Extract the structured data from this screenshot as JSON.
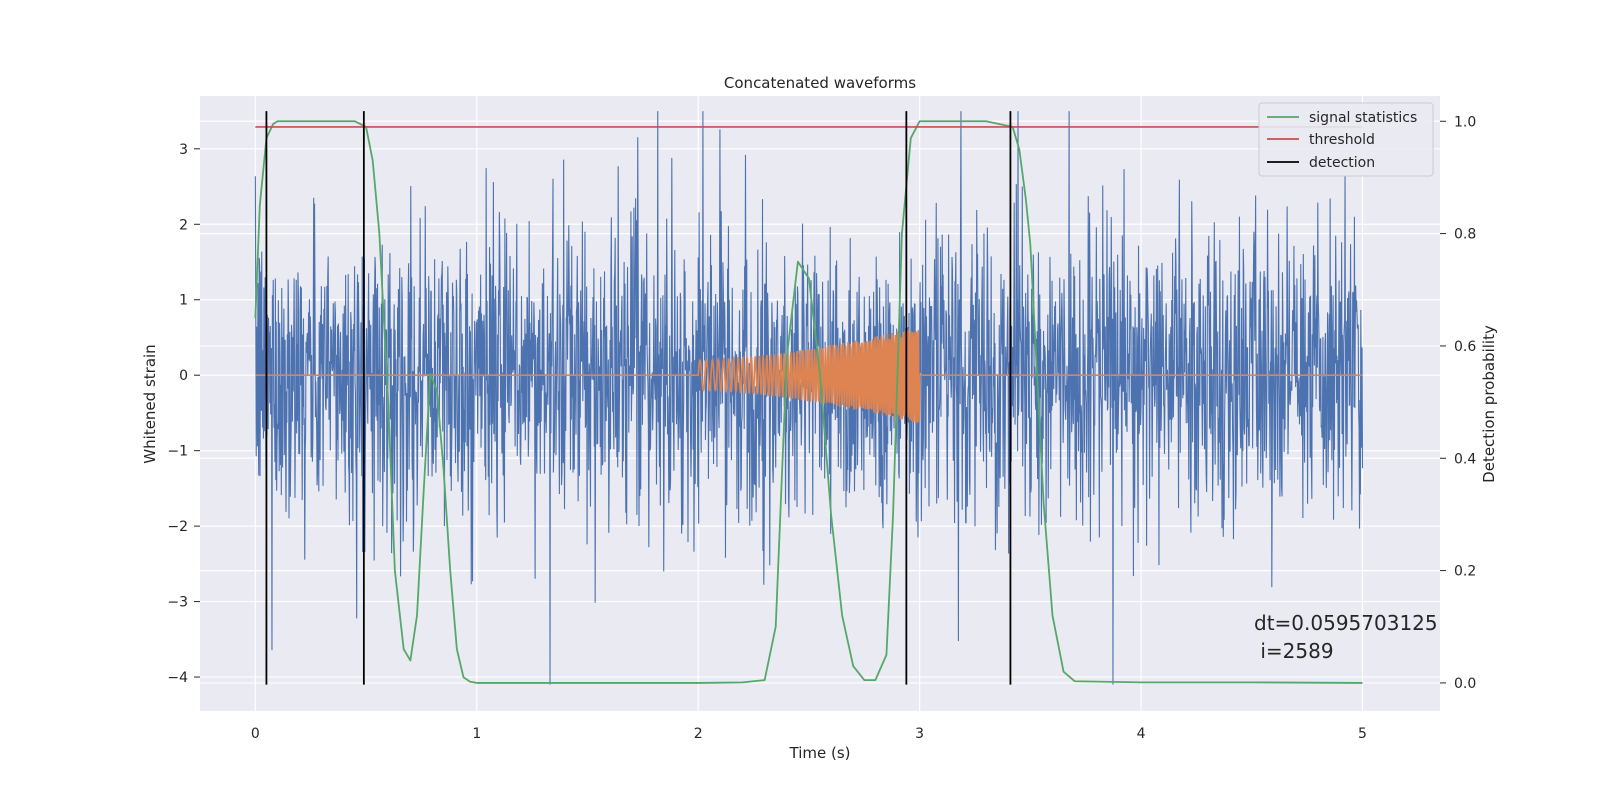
{
  "chart_data": {
    "type": "line",
    "title": "Concatenated waveforms",
    "xlabel": "Time (s)",
    "ylabel": "Whitened strain",
    "ylabel_right": "Detection probability",
    "xlim": [
      -0.25,
      5.35
    ],
    "ylim": [
      -4.45,
      3.7
    ],
    "ylim_right": [
      -0.05,
      1.045
    ],
    "x_ticks": [
      0,
      1,
      2,
      3,
      4,
      5
    ],
    "y_ticks": [
      -4,
      -3,
      -2,
      -1,
      0,
      1,
      2,
      3
    ],
    "y_right_ticks": [
      0.0,
      0.2,
      0.4,
      0.6,
      0.8,
      1.0
    ],
    "x_tick_labels": [
      "0",
      "1",
      "2",
      "3",
      "4",
      "5"
    ],
    "y_tick_labels": [
      "−4",
      "−3",
      "−2",
      "−1",
      "0",
      "1",
      "2",
      "3"
    ],
    "y_right_tick_labels": [
      "0.0",
      "0.2",
      "0.4",
      "0.6",
      "0.8",
      "1.0"
    ],
    "grid": true,
    "legend_position": "top-right",
    "background": "#eaeaf2",
    "series": [
      {
        "name": "signal statistics",
        "axis": "right",
        "color": "#55a868",
        "x": [
          0.0,
          0.02,
          0.05,
          0.08,
          0.1,
          0.15,
          0.3,
          0.45,
          0.5,
          0.53,
          0.56,
          0.6,
          0.63,
          0.67,
          0.7,
          0.73,
          0.76,
          0.79,
          0.82,
          0.85,
          0.88,
          0.91,
          0.94,
          0.97,
          1.0,
          1.5,
          2.0,
          2.2,
          2.3,
          2.35,
          2.4,
          2.45,
          2.5,
          2.55,
          2.6,
          2.65,
          2.7,
          2.75,
          2.8,
          2.85,
          2.88,
          2.92,
          2.96,
          3.0,
          3.1,
          3.3,
          3.42,
          3.45,
          3.48,
          3.5,
          3.53,
          3.56,
          3.6,
          3.65,
          3.7,
          4.0,
          4.5,
          5.0
        ],
        "y": [
          0.65,
          0.85,
          0.97,
          0.995,
          1.0,
          1.0,
          1.0,
          1.0,
          0.99,
          0.93,
          0.8,
          0.5,
          0.2,
          0.06,
          0.04,
          0.12,
          0.34,
          0.55,
          0.52,
          0.38,
          0.2,
          0.06,
          0.01,
          0.002,
          0.0,
          0.0,
          0.0,
          0.001,
          0.005,
          0.1,
          0.58,
          0.75,
          0.72,
          0.55,
          0.3,
          0.12,
          0.03,
          0.005,
          0.005,
          0.05,
          0.3,
          0.8,
          0.97,
          1.0,
          1.0,
          1.0,
          0.99,
          0.95,
          0.86,
          0.78,
          0.55,
          0.32,
          0.12,
          0.02,
          0.003,
          0.001,
          0.001,
          0.0
        ]
      },
      {
        "name": "threshold",
        "axis": "right",
        "color": "#c44e52",
        "x": [
          0.0,
          5.0
        ],
        "y": [
          0.99,
          0.99
        ]
      },
      {
        "name": "detection",
        "axis": "left",
        "type": "vlines",
        "color": "#000000",
        "x": [
          0.05,
          0.49,
          2.94,
          3.41
        ],
        "ymin": -4.1,
        "ymax": 3.5
      },
      {
        "axis": "left",
        "type": "noise",
        "color": "#4c72b0",
        "x_range": [
          0.0,
          5.0
        ],
        "typical_range": [
          -1.8,
          1.8
        ],
        "peak_range": [
          -4.1,
          3.5
        ]
      },
      {
        "axis": "left",
        "type": "chirp",
        "color": "#dd8452",
        "x_range": [
          0.0,
          5.0
        ],
        "chirp_start": 2.0,
        "chirp_end": 3.0,
        "amplitude_start": 0.2,
        "amplitude_end": 0.65
      }
    ],
    "legend": [
      "signal statistics",
      "threshold",
      "detection"
    ],
    "annotations": [
      "dt=0.0595703125",
      " i=2589"
    ]
  }
}
